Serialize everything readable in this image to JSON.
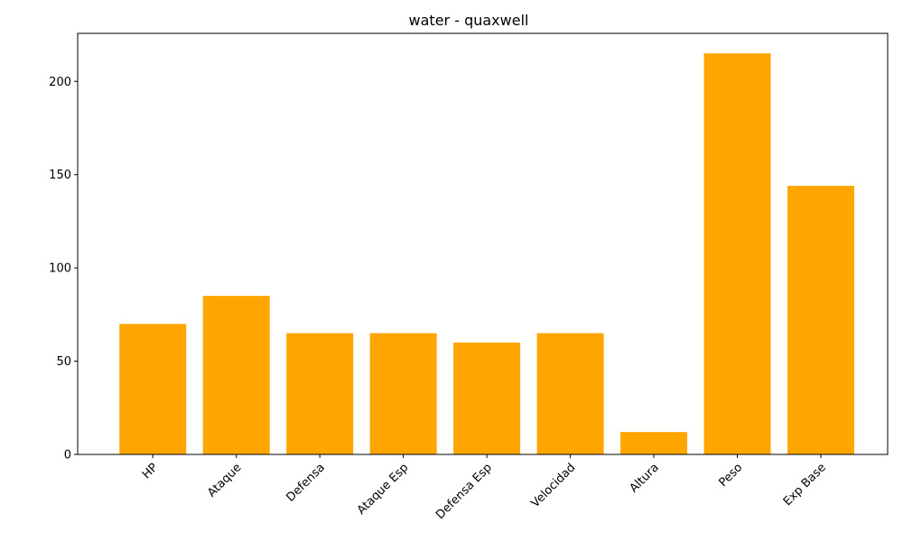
{
  "chart_data": {
    "type": "bar",
    "title": "water - quaxwell",
    "xlabel": "",
    "ylabel": "",
    "categories": [
      "HP",
      "Ataque",
      "Defensa",
      "Ataque Esp",
      "Defensa Esp",
      "Velocidad",
      "Altura",
      "Peso",
      "Exp Base"
    ],
    "values": [
      70,
      85,
      65,
      65,
      60,
      65,
      12,
      215,
      144
    ],
    "ylim": [
      0,
      225.75
    ],
    "yticks": [
      0,
      50,
      100,
      150,
      200
    ],
    "bar_color": "#FFA500",
    "grid": false,
    "legend": "none",
    "xtick_rotation_deg": 45
  }
}
